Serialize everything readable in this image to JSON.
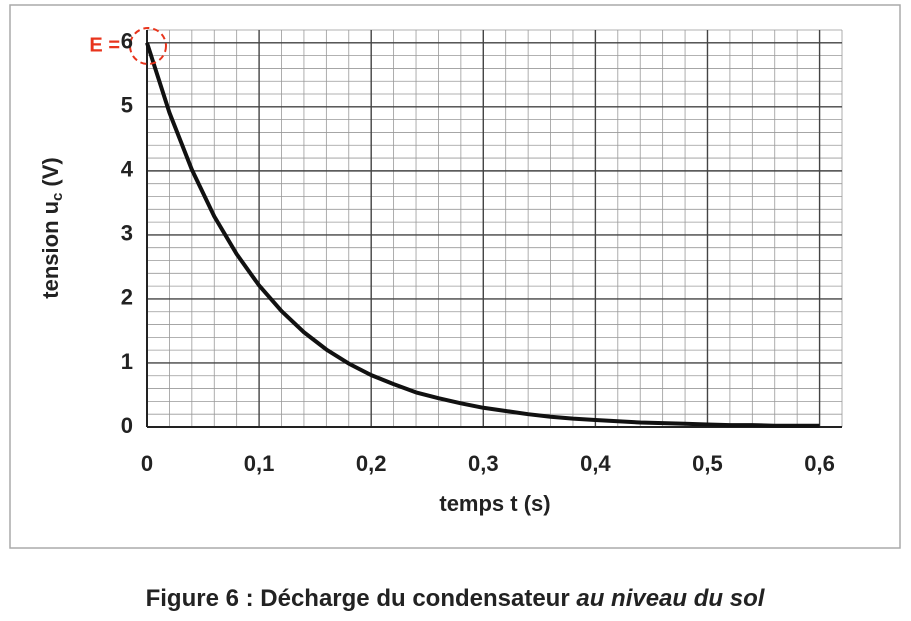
{
  "chart_data": {
    "type": "line",
    "y_label": {
      "main": "tension u",
      "sub": "c",
      "unit": "(V)"
    },
    "x_label": "temps t (s)",
    "annotation": "E =",
    "caption": {
      "main": "Figure 6 : Décharge du condensateur",
      "italic": "au niveau du sol"
    },
    "x": [
      0,
      0.02,
      0.04,
      0.06,
      0.08,
      0.1,
      0.12,
      0.14,
      0.16,
      0.18,
      0.2,
      0.22,
      0.24,
      0.26,
      0.28,
      0.3,
      0.32,
      0.34,
      0.36,
      0.38,
      0.4,
      0.42,
      0.44,
      0.46,
      0.48,
      0.5,
      0.52,
      0.54,
      0.56,
      0.58,
      0.6
    ],
    "series": [
      {
        "color": "#111111",
        "values": [
          6.0,
          4.91,
          4.02,
          3.29,
          2.7,
          2.21,
          1.81,
          1.48,
          1.21,
          0.99,
          0.81,
          0.67,
          0.54,
          0.45,
          0.37,
          0.3,
          0.25,
          0.2,
          0.16,
          0.13,
          0.11,
          0.09,
          0.07,
          0.06,
          0.05,
          0.04,
          0.03,
          0.03,
          0.02,
          0.02,
          0.02
        ]
      }
    ],
    "xlim": [
      0,
      0.62
    ],
    "ylim": [
      0,
      6.2
    ],
    "xticks": [
      0,
      {
        "value": 0.1,
        "label": "0,1"
      },
      {
        "value": 0.2,
        "label": "0,2"
      },
      {
        "value": 0.3,
        "label": "0,3"
      },
      {
        "value": 0.4,
        "label": "0,4"
      },
      {
        "value": 0.5,
        "label": "0,5"
      },
      {
        "value": 0.6,
        "label": "0,6"
      }
    ],
    "yticks": [
      0,
      1,
      2,
      3,
      4,
      5,
      6
    ],
    "grid": true,
    "minor_grid": {
      "x": 0.02,
      "y": 0.2
    }
  }
}
